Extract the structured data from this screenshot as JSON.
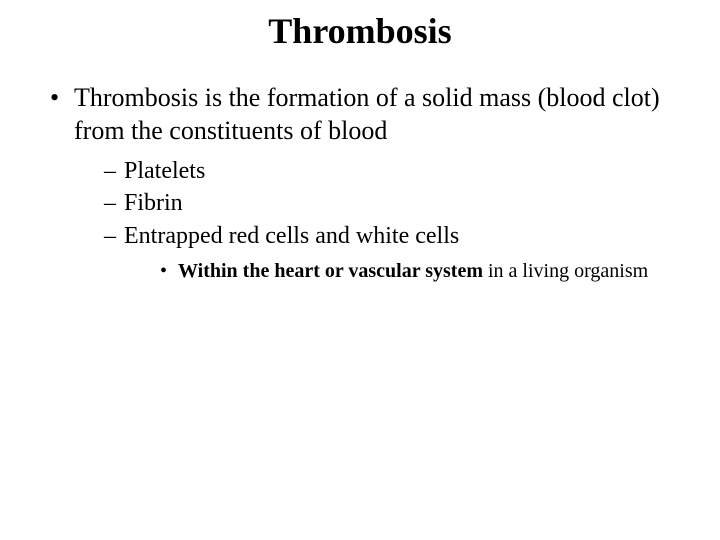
{
  "slide": {
    "title": "Thrombosis",
    "background_color": "#ffffff",
    "text_color": "#000000",
    "font_family": "Times New Roman",
    "title_fontsize": 36,
    "level1_fontsize": 26,
    "level2_fontsize": 24,
    "level3_fontsize": 20,
    "bullets": {
      "level1": [
        {
          "text": "Thrombosis is the formation of a solid mass (blood clot) from the constituents of blood"
        }
      ],
      "level2": [
        {
          "text": "Platelets"
        },
        {
          "text": "Fibrin"
        },
        {
          "text": "Entrapped red cells and white cells"
        }
      ],
      "level3": [
        {
          "bold_part": "Within the heart or vascular system ",
          "rest": "in a living organism"
        }
      ]
    }
  }
}
